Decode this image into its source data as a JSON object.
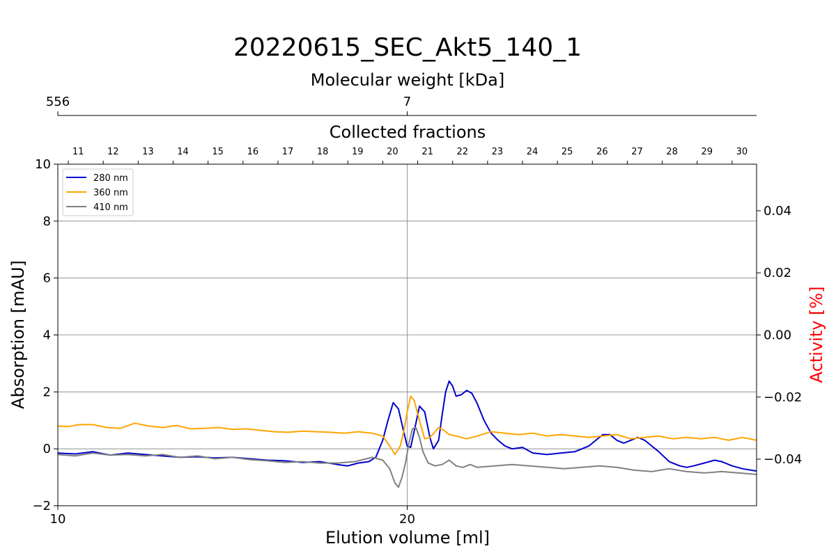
{
  "chart_data": {
    "type": "line",
    "title": "20220615_SEC_Akt5_140_1",
    "xlabel": "Elution volume [ml]",
    "ylabel": "Absorption [mAU]",
    "y2label": "Activity [%]",
    "top_axis_label": "Molecular weight [kDa]",
    "fraction_axis_label": "Collected fractions",
    "xlim": [
      10,
      30
    ],
    "ylim": [
      -2,
      10
    ],
    "y2lim": [
      -0.055,
      0.055
    ],
    "x_ticks": [
      10,
      20
    ],
    "y_ticks": [
      -2,
      0,
      2,
      4,
      6,
      8,
      10
    ],
    "y2_ticks": [
      -0.04,
      -0.02,
      0.0,
      0.02,
      0.04
    ],
    "y2_tick_labels": [
      "−0.04",
      "−0.02",
      "0.00",
      "0.02",
      "0.04"
    ],
    "y_tick_labels": [
      "−2",
      "0",
      "2",
      "4",
      "6",
      "8",
      "10"
    ],
    "x_tick_labels": [
      "10",
      "20"
    ],
    "mw_ticks": [
      {
        "x": 10,
        "label": "556"
      },
      {
        "x": 20,
        "label": "7"
      }
    ],
    "fractions": [
      {
        "label": "11",
        "x": 10.58
      },
      {
        "label": "12",
        "x": 11.58
      },
      {
        "label": "13",
        "x": 12.58
      },
      {
        "label": "14",
        "x": 13.58
      },
      {
        "label": "15",
        "x": 14.58
      },
      {
        "label": "16",
        "x": 15.58
      },
      {
        "label": "17",
        "x": 16.58
      },
      {
        "label": "18",
        "x": 17.58
      },
      {
        "label": "19",
        "x": 18.58
      },
      {
        "label": "20",
        "x": 19.58
      },
      {
        "label": "21",
        "x": 20.58
      },
      {
        "label": "22",
        "x": 21.58
      },
      {
        "label": "23",
        "x": 22.58
      },
      {
        "label": "24",
        "x": 23.58
      },
      {
        "label": "25",
        "x": 24.58
      },
      {
        "label": "26",
        "x": 25.58
      },
      {
        "label": "27",
        "x": 26.58
      },
      {
        "label": "28",
        "x": 27.58
      },
      {
        "label": "29",
        "x": 28.58
      },
      {
        "label": "30",
        "x": 29.58
      }
    ],
    "fraction_boundaries": [
      10.3,
      11.3,
      12.3,
      13.3,
      14.3,
      15.3,
      16.3,
      17.3,
      18.3,
      19.3,
      20.3,
      21.3,
      22.3,
      23.3,
      24.3,
      25.3,
      26.3,
      27.3,
      28.3,
      29.3
    ],
    "grid": true,
    "legend_position": "top-left",
    "series": [
      {
        "name": "280 nm",
        "color": "#0000cc",
        "x": [
          10,
          10.5,
          11,
          11.5,
          12,
          12.5,
          13,
          13.5,
          14,
          14.5,
          15,
          15.5,
          16,
          16.5,
          17,
          17.5,
          18,
          18.3,
          18.6,
          18.9,
          19.1,
          19.3,
          19.45,
          19.6,
          19.75,
          19.9,
          20.0,
          20.1,
          20.25,
          20.35,
          20.5,
          20.65,
          20.75,
          20.9,
          21.0,
          21.1,
          21.2,
          21.3,
          21.4,
          21.55,
          21.7,
          21.85,
          22.0,
          22.2,
          22.4,
          22.6,
          22.8,
          23.0,
          23.3,
          23.6,
          24.0,
          24.4,
          24.8,
          25.0,
          25.2,
          25.4,
          25.6,
          25.8,
          26.0,
          26.2,
          26.4,
          26.6,
          26.8,
          27.0,
          27.2,
          27.5,
          27.8,
          28.0,
          28.2,
          28.5,
          28.8,
          29.0,
          29.3,
          29.6,
          30.0
        ],
        "values": [
          -0.15,
          -0.18,
          -0.1,
          -0.22,
          -0.15,
          -0.2,
          -0.25,
          -0.3,
          -0.28,
          -0.32,
          -0.3,
          -0.35,
          -0.4,
          -0.42,
          -0.48,
          -0.45,
          -0.55,
          -0.6,
          -0.5,
          -0.45,
          -0.3,
          0.3,
          1.0,
          1.62,
          1.4,
          0.6,
          0.1,
          0.05,
          0.9,
          1.5,
          1.3,
          0.4,
          0.0,
          0.3,
          1.2,
          2.0,
          2.38,
          2.2,
          1.85,
          1.9,
          2.05,
          1.95,
          1.6,
          1.0,
          0.55,
          0.3,
          0.1,
          0.0,
          0.05,
          -0.15,
          -0.2,
          -0.15,
          -0.1,
          0.0,
          0.1,
          0.3,
          0.5,
          0.5,
          0.3,
          0.2,
          0.3,
          0.4,
          0.3,
          0.1,
          -0.1,
          -0.45,
          -0.6,
          -0.65,
          -0.6,
          -0.5,
          -0.4,
          -0.45,
          -0.6,
          -0.7,
          -0.78
        ]
      },
      {
        "name": "360 nm",
        "color": "#ffa500",
        "x": [
          10,
          10.3,
          10.6,
          11,
          11.4,
          11.8,
          12.2,
          12.6,
          13,
          13.4,
          13.8,
          14.2,
          14.6,
          15,
          15.4,
          15.8,
          16.2,
          16.6,
          17,
          17.4,
          17.8,
          18.2,
          18.6,
          19.0,
          19.3,
          19.5,
          19.65,
          19.8,
          19.9,
          20.0,
          20.1,
          20.2,
          20.35,
          20.5,
          20.65,
          20.8,
          20.9,
          21.05,
          21.2,
          21.4,
          21.7,
          22.0,
          22.4,
          22.8,
          23.2,
          23.6,
          24.0,
          24.4,
          24.8,
          25.2,
          25.6,
          26.0,
          26.4,
          26.8,
          27.2,
          27.6,
          28.0,
          28.4,
          28.8,
          29.2,
          29.6,
          30.0
        ],
        "values": [
          0.8,
          0.78,
          0.85,
          0.85,
          0.75,
          0.72,
          0.9,
          0.8,
          0.75,
          0.82,
          0.7,
          0.72,
          0.75,
          0.68,
          0.7,
          0.65,
          0.6,
          0.58,
          0.62,
          0.6,
          0.58,
          0.55,
          0.6,
          0.55,
          0.45,
          0.1,
          -0.2,
          0.1,
          0.6,
          1.3,
          1.85,
          1.7,
          1.0,
          0.35,
          0.4,
          0.6,
          0.75,
          0.65,
          0.5,
          0.45,
          0.35,
          0.45,
          0.6,
          0.55,
          0.5,
          0.55,
          0.45,
          0.5,
          0.45,
          0.4,
          0.45,
          0.5,
          0.35,
          0.4,
          0.45,
          0.35,
          0.4,
          0.35,
          0.4,
          0.3,
          0.4,
          0.3
        ]
      },
      {
        "name": "410 nm",
        "color": "#808080",
        "x": [
          10,
          10.5,
          11,
          11.5,
          12,
          12.5,
          13,
          13.5,
          14,
          14.5,
          15,
          15.5,
          16,
          16.5,
          17,
          17.5,
          18,
          18.5,
          19.0,
          19.3,
          19.5,
          19.65,
          19.75,
          19.85,
          19.95,
          20.05,
          20.15,
          20.25,
          20.35,
          20.45,
          20.6,
          20.8,
          21.0,
          21.2,
          21.4,
          21.6,
          21.8,
          22.0,
          22.5,
          23.0,
          23.5,
          24.0,
          24.5,
          25.0,
          25.5,
          26.0,
          26.5,
          27.0,
          27.5,
          28.0,
          28.5,
          29.0,
          29.5,
          30.0
        ],
        "values": [
          -0.2,
          -0.25,
          -0.15,
          -0.22,
          -0.2,
          -0.25,
          -0.2,
          -0.3,
          -0.25,
          -0.35,
          -0.3,
          -0.38,
          -0.42,
          -0.48,
          -0.45,
          -0.5,
          -0.5,
          -0.45,
          -0.3,
          -0.4,
          -0.7,
          -1.2,
          -1.35,
          -1.0,
          -0.5,
          0.2,
          0.7,
          0.75,
          0.4,
          -0.1,
          -0.5,
          -0.6,
          -0.55,
          -0.4,
          -0.6,
          -0.65,
          -0.55,
          -0.65,
          -0.6,
          -0.55,
          -0.6,
          -0.65,
          -0.7,
          -0.65,
          -0.6,
          -0.65,
          -0.75,
          -0.8,
          -0.7,
          -0.8,
          -0.85,
          -0.8,
          -0.85,
          -0.9
        ]
      }
    ]
  }
}
